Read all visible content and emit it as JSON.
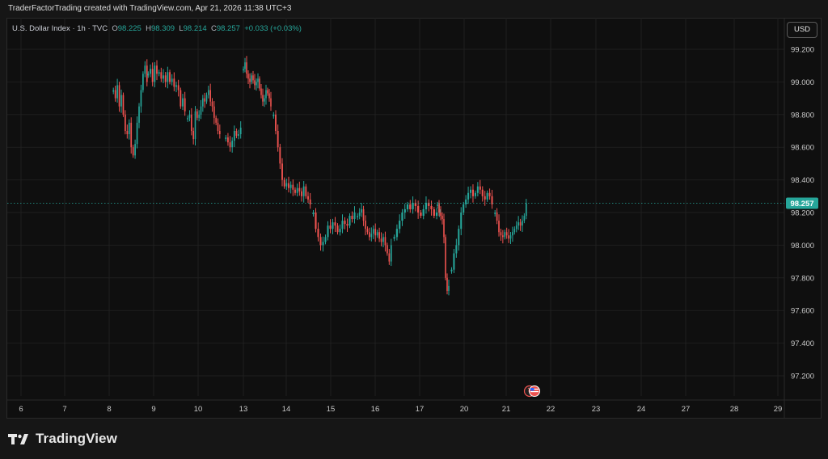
{
  "attribution": "TraderFactorTrading created with TradingView.com, Apr 21, 2026 11:38 UTC+3",
  "legend": {
    "symbol": "U.S. Dollar Index · 1h · TVC",
    "o_label": "O",
    "o": "98.225",
    "h_label": "H",
    "h": "98.309",
    "l_label": "L",
    "l": "98.214",
    "c_label": "C",
    "c": "98.257",
    "change": "+0.033 (+0.03%)"
  },
  "currency_button": "USD",
  "last_price_label": "98.257",
  "brand": "TradingView",
  "colors": {
    "up": "#26a69a",
    "down": "#ef5350",
    "grid": "#1f1f1f",
    "axis_text": "#c8c8c8",
    "price_line": "#26a69a"
  },
  "chart_data": {
    "type": "candlestick",
    "symbol": "U.S. Dollar Index",
    "interval": "1h",
    "ylim": [
      97.1,
      99.35
    ],
    "y_ticks": [
      "99.200",
      "99.000",
      "98.800",
      "98.600",
      "98.400",
      "98.200",
      "98.000",
      "97.800",
      "97.600",
      "97.400",
      "97.200"
    ],
    "x_ticks": [
      "6",
      "7",
      "8",
      "9",
      "10",
      "13",
      "14",
      "15",
      "16",
      "17",
      "20",
      "21",
      "22",
      "23",
      "24",
      "27",
      "28",
      "29"
    ],
    "last_price": 98.257,
    "close_path": [
      {
        "day": "8",
        "values": [
          98.95,
          98.9,
          98.98,
          98.85,
          98.92,
          98.8,
          98.7,
          98.68,
          98.75,
          98.6,
          98.55,
          98.62,
          98.75,
          98.85,
          98.95,
          99.05,
          99.1,
          99.0
        ]
      },
      {
        "day": "9",
        "values": [
          99.05,
          99.08,
          99.0,
          99.1,
          99.05,
          99.06,
          99.02,
          99.04,
          99.0,
          99.06,
          99.0,
          99.02,
          98.97,
          98.98,
          98.95,
          98.85,
          98.9,
          98.82
        ]
      },
      {
        "day": "10",
        "values": [
          98.78,
          98.8,
          98.7,
          98.65,
          98.82,
          98.78,
          98.8,
          98.85,
          98.9,
          98.88,
          98.92,
          98.95,
          98.88,
          98.85,
          98.78,
          98.75,
          98.7,
          98.68
        ]
      },
      {
        "day": "10b",
        "values": [
          98.66,
          98.63,
          98.6,
          98.64,
          98.7,
          98.67,
          98.68,
          98.72
        ]
      },
      {
        "day": "13",
        "values": [
          99.08,
          99.12,
          99.05,
          99.02,
          99.0,
          99.04,
          99.01,
          98.98,
          99.0,
          99.02,
          98.96,
          98.92,
          98.88,
          98.9,
          98.95,
          98.93,
          98.9,
          98.85
        ]
      },
      {
        "day": "14",
        "values": [
          98.8,
          98.7,
          98.6,
          98.5,
          98.4,
          98.36,
          98.38,
          98.35,
          98.37,
          98.34,
          98.32,
          98.35,
          98.33,
          98.3,
          98.36,
          98.3,
          98.28,
          98.25
        ]
      },
      {
        "day": "15",
        "values": [
          98.2,
          98.1,
          98.05,
          98.0,
          98.02,
          98.05,
          98.12,
          98.1,
          98.14,
          98.12,
          98.08,
          98.1,
          98.15,
          98.13,
          98.12,
          98.18,
          98.16,
          98.2
        ]
      },
      {
        "day": "16",
        "values": [
          98.18,
          98.2,
          98.22,
          98.15,
          98.1,
          98.08,
          98.05,
          98.07,
          98.1,
          98.06,
          98.08,
          98.04,
          98.02,
          98.05,
          98.0,
          97.95,
          97.9,
          98.0
        ]
      },
      {
        "day": "17",
        "values": [
          98.05,
          98.1,
          98.15,
          98.2,
          98.22,
          98.25,
          98.22,
          98.26,
          98.24,
          98.2,
          98.18,
          98.22,
          98.26,
          98.24,
          98.22,
          98.18,
          98.2,
          98.22
        ]
      },
      {
        "day": "17b",
        "values": [
          98.25,
          98.2,
          98.18,
          98.16,
          98.05,
          97.8,
          97.72,
          97.75
        ]
      },
      {
        "day": "20",
        "values": [
          97.85,
          97.95,
          98.0,
          98.1,
          98.2,
          98.25,
          98.28,
          98.32,
          98.34,
          98.3,
          98.32,
          98.36,
          98.34,
          98.3,
          98.28,
          98.32,
          98.3,
          98.25
        ]
      },
      {
        "day": "21",
        "values": [
          98.2,
          98.15,
          98.08,
          98.06,
          98.05,
          98.08,
          98.06,
          98.04,
          98.06,
          98.08,
          98.1,
          98.12,
          98.14,
          98.12,
          98.15,
          98.18,
          98.257
        ]
      }
    ]
  }
}
